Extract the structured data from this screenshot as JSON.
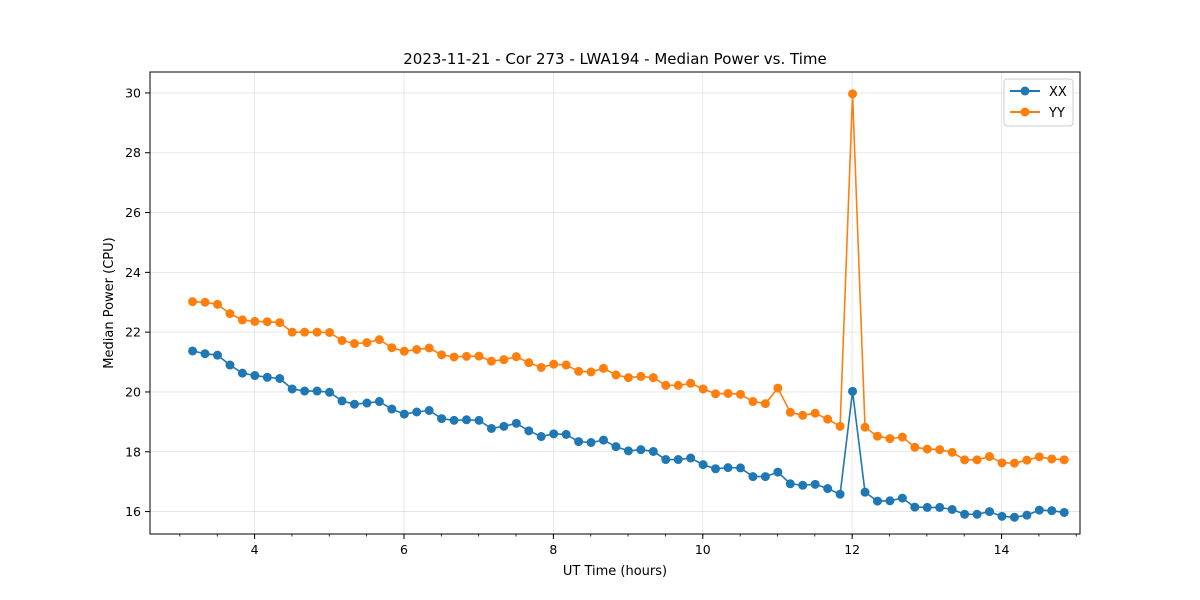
{
  "chart_data": {
    "type": "line",
    "title": "2023-11-21 - Cor 273 - LWA194 - Median Power vs. Time",
    "xlabel": "UT Time (hours)",
    "ylabel": "Median Power (CPU)",
    "xlim": [
      2.6,
      15.05
    ],
    "ylim": [
      15.25,
      30.7
    ],
    "xticks": [
      4,
      6,
      8,
      10,
      12,
      14
    ],
    "xtick_labels": [
      "4",
      "6",
      "8",
      "10",
      "12",
      "14"
    ],
    "yticks": [
      16,
      18,
      20,
      22,
      24,
      26,
      28,
      30
    ],
    "ytick_labels": [
      "16",
      "18",
      "20",
      "22",
      "24",
      "26",
      "28",
      "30"
    ],
    "grid": true,
    "legend_position": "top-right",
    "x_start": 3.17,
    "x_step": 0.1667,
    "series": [
      {
        "name": "XX",
        "color": "#1f77b4",
        "marker": "circle",
        "values": [
          21.37,
          21.28,
          21.23,
          20.9,
          20.63,
          20.55,
          20.49,
          20.45,
          20.1,
          20.03,
          20.03,
          19.99,
          19.7,
          19.59,
          19.63,
          19.68,
          19.43,
          19.26,
          19.33,
          19.38,
          19.11,
          19.05,
          19.07,
          19.05,
          18.78,
          18.85,
          18.95,
          18.7,
          18.51,
          18.6,
          18.58,
          18.34,
          18.31,
          18.39,
          18.17,
          18.03,
          18.07,
          18.01,
          17.74,
          17.74,
          17.79,
          17.57,
          17.43,
          17.47,
          17.46,
          17.17,
          17.17,
          17.32,
          16.93,
          16.88,
          16.91,
          16.77,
          16.58,
          20.02,
          16.65,
          16.35,
          16.36,
          16.45,
          16.15,
          16.14,
          16.14,
          16.07,
          15.91,
          15.91,
          16.0,
          15.84,
          15.81,
          15.88,
          16.05,
          16.03,
          15.97
        ]
      },
      {
        "name": "YY",
        "color": "#ff7f0e",
        "marker": "circle",
        "values": [
          23.02,
          23.0,
          22.93,
          22.62,
          22.41,
          22.36,
          22.35,
          22.32,
          22.0,
          22.0,
          22.0,
          21.99,
          21.72,
          21.62,
          21.65,
          21.75,
          21.48,
          21.36,
          21.42,
          21.47,
          21.24,
          21.17,
          21.19,
          21.2,
          21.03,
          21.08,
          21.18,
          20.98,
          20.82,
          20.93,
          20.9,
          20.69,
          20.67,
          20.79,
          20.57,
          20.48,
          20.52,
          20.48,
          20.22,
          20.22,
          20.29,
          20.1,
          19.94,
          19.95,
          19.92,
          19.68,
          19.61,
          20.13,
          19.32,
          19.22,
          19.29,
          19.09,
          18.85,
          29.97,
          18.82,
          18.52,
          18.44,
          18.49,
          18.15,
          18.09,
          18.07,
          17.98,
          17.73,
          17.73,
          17.84,
          17.63,
          17.62,
          17.72,
          17.83,
          17.76,
          17.73
        ]
      }
    ]
  }
}
